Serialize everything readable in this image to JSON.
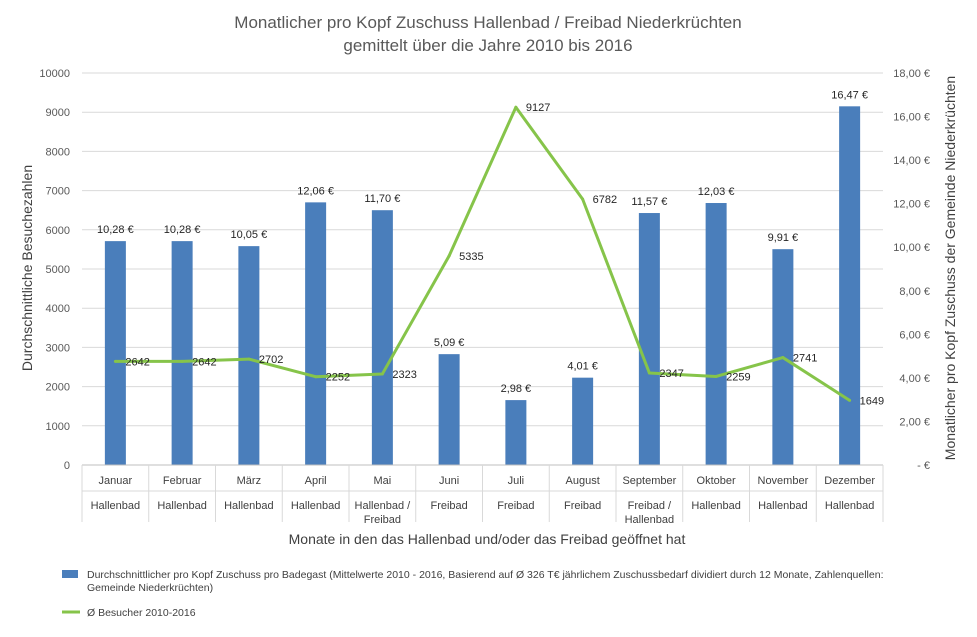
{
  "chart_data": {
    "type": "bar",
    "title": "Monatlicher pro Kopf Zuschuss Hallenbad / Freibad Niederkrüchten",
    "subtitle": "gemittelt über die Jahre 2010 bis 2016",
    "xlabel": "Monate in den das Hallenbad und/oder das Freibad geöffnet hat",
    "ylabel_left": "Durchschnittliche Besuchezahlen",
    "ylabel_right": "Monatlicher pro Kopf Zuschuss der Gemeinde Niederkrüchten",
    "ylim_left": [
      0,
      10000
    ],
    "ylim_right": [
      0,
      18
    ],
    "yticks_left": [
      "0",
      "1000",
      "2000",
      "3000",
      "4000",
      "5000",
      "6000",
      "7000",
      "8000",
      "9000",
      "10000"
    ],
    "yticks_right": [
      "-  €",
      "2,00 €",
      "4,00 €",
      "6,00 €",
      "8,00 €",
      "10,00 €",
      "12,00 €",
      "14,00 €",
      "16,00 €",
      "18,00 €"
    ],
    "categories": [
      "Januar",
      "Februar",
      "März",
      "April",
      "Mai",
      "Juni",
      "Juli",
      "August",
      "September",
      "Oktober",
      "November",
      "Dezember"
    ],
    "category_groups": [
      [
        "Hallenbad"
      ],
      [
        "Hallenbad"
      ],
      [
        "Hallenbad"
      ],
      [
        "Hallenbad"
      ],
      [
        "Hallenbad /",
        "Freibad"
      ],
      [
        "Freibad"
      ],
      [
        "Freibad"
      ],
      [
        "Freibad"
      ],
      [
        "Freibad /",
        "Hallenbad"
      ],
      [
        "Hallenbad"
      ],
      [
        "Hallenbad"
      ],
      [
        "Hallenbad"
      ]
    ],
    "series": [
      {
        "name": "Durchschnittlicher pro Kopf Zuschuss pro Badegast (Mittelwerte 2010 - 2016, Basierend auf Ø 326 T€ jährlichem Zuschussbedarf dividiert durch 12 Monate, Zahlenquellen: Gemeinde Niederkrüchten)",
        "type": "bar",
        "axis": "right",
        "color": "#4a7ebb",
        "values": [
          10.28,
          10.28,
          10.05,
          12.06,
          11.7,
          5.09,
          2.98,
          4.01,
          11.57,
          12.03,
          9.91,
          16.47
        ],
        "labels": [
          "10,28 €",
          "10,28 €",
          "10,05 €",
          "12,06 €",
          "11,70 €",
          "5,09 €",
          "2,98 €",
          "4,01 €",
          "11,57 €",
          "12,03 €",
          "9,91 €",
          "16,47 €"
        ]
      },
      {
        "name": "Ø Besucher 2010-2016",
        "type": "line",
        "axis": "left",
        "color": "#86c44a",
        "values": [
          2642,
          2642,
          2702,
          2252,
          2323,
          5335,
          9127,
          6782,
          2347,
          2259,
          2741,
          1649
        ],
        "labels": [
          "2642",
          "2642",
          "2702",
          "2252",
          "2323",
          "5335",
          "9127",
          "6782",
          "2347",
          "2259",
          "2741",
          "1649"
        ]
      }
    ],
    "legend_lines": [
      [
        "Durchschnittlicher pro Kopf Zuschuss pro Badegast (Mittelwerte 2010 - 2016, Basierend auf Ø 326 T€ jährlichem Zuschussbedarf dividiert durch 12 Monate, Zahlenquellen:",
        "Gemeinde Niederkrüchten)"
      ],
      [
        "Ø Besucher 2010-2016"
      ]
    ],
    "legend_position": "bottom-left",
    "grid": true
  }
}
